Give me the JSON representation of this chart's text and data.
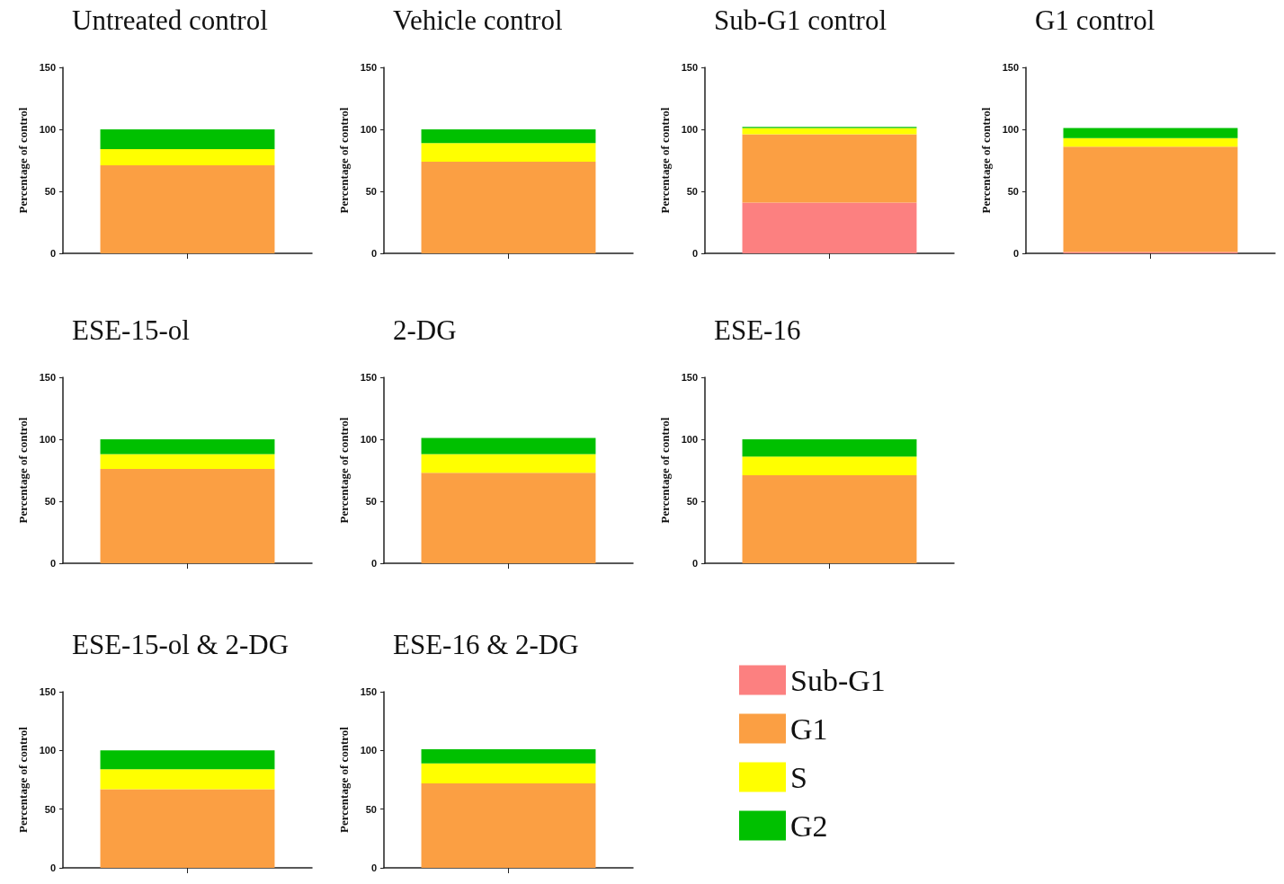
{
  "chart_data": [
    {
      "type": "bar",
      "title": "Untreated control",
      "ylabel": "Percentage of control",
      "categories": [
        null
      ],
      "stacked": true,
      "ylim": [
        0,
        150
      ],
      "yticks": [
        0,
        50,
        100,
        150
      ],
      "series": [
        {
          "color": "#fc8080",
          "values": [
            0
          ]
        },
        {
          "color": "#fb9f43",
          "values": [
            71
          ]
        },
        {
          "color": "#ffff00",
          "values": [
            13
          ]
        },
        {
          "color": "#00c000",
          "values": [
            16
          ]
        }
      ]
    },
    {
      "type": "bar",
      "title": "Vehicle control",
      "ylabel": "Percentage of control",
      "categories": [
        null
      ],
      "stacked": true,
      "ylim": [
        0,
        150
      ],
      "yticks": [
        0,
        50,
        100,
        150
      ],
      "series": [
        {
          "color": "#fc8080",
          "values": [
            0
          ]
        },
        {
          "color": "#fb9f43",
          "values": [
            74
          ]
        },
        {
          "color": "#ffff00",
          "values": [
            15
          ]
        },
        {
          "color": "#00c000",
          "values": [
            11
          ]
        }
      ]
    },
    {
      "type": "bar",
      "title": "Sub-G1 control",
      "ylabel": "Percentage of control",
      "categories": [
        null
      ],
      "stacked": true,
      "ylim": [
        0,
        150
      ],
      "yticks": [
        0,
        50,
        100,
        150
      ],
      "series": [
        {
          "color": "#fc8080",
          "values": [
            41
          ]
        },
        {
          "color": "#fb9f43",
          "values": [
            55
          ]
        },
        {
          "color": "#ffff00",
          "values": [
            5
          ]
        },
        {
          "color": "#00c000",
          "values": [
            1
          ]
        }
      ]
    },
    {
      "type": "bar",
      "title": "G1 control",
      "ylabel": "Percentage of control",
      "categories": [
        null
      ],
      "stacked": true,
      "ylim": [
        0,
        150
      ],
      "yticks": [
        0,
        50,
        100,
        150
      ],
      "series": [
        {
          "color": "#fc8080",
          "values": [
            1
          ]
        },
        {
          "color": "#fb9f43",
          "values": [
            85
          ]
        },
        {
          "color": "#ffff00",
          "values": [
            7
          ]
        },
        {
          "color": "#00c000",
          "values": [
            8
          ]
        }
      ]
    },
    {
      "type": "bar",
      "title": "ESE-15-ol",
      "ylabel": "Percentage of control",
      "categories": [
        null
      ],
      "stacked": true,
      "ylim": [
        0,
        150
      ],
      "yticks": [
        0,
        50,
        100,
        150
      ],
      "series": [
        {
          "color": "#fc8080",
          "values": [
            0
          ]
        },
        {
          "color": "#fb9f43",
          "values": [
            76
          ]
        },
        {
          "color": "#ffff00",
          "values": [
            12
          ]
        },
        {
          "color": "#00c000",
          "values": [
            12
          ]
        }
      ]
    },
    {
      "type": "bar",
      "title": "2-DG",
      "ylabel": "Percentage of control",
      "categories": [
        null
      ],
      "stacked": true,
      "ylim": [
        0,
        150
      ],
      "yticks": [
        0,
        50,
        100,
        150
      ],
      "series": [
        {
          "color": "#fc8080",
          "values": [
            0
          ]
        },
        {
          "color": "#fb9f43",
          "values": [
            73
          ]
        },
        {
          "color": "#ffff00",
          "values": [
            15
          ]
        },
        {
          "color": "#00c000",
          "values": [
            13
          ]
        }
      ]
    },
    {
      "type": "bar",
      "title": "ESE-16",
      "ylabel": "Percentage of control",
      "categories": [
        null
      ],
      "stacked": true,
      "ylim": [
        0,
        150
      ],
      "yticks": [
        0,
        50,
        100,
        150
      ],
      "series": [
        {
          "color": "#fc8080",
          "values": [
            0
          ]
        },
        {
          "color": "#fb9f43",
          "values": [
            71
          ]
        },
        {
          "color": "#ffff00",
          "values": [
            15
          ]
        },
        {
          "color": "#00c000",
          "values": [
            14
          ]
        }
      ]
    },
    {
      "type": "bar",
      "title": "ESE-15-ol & 2-DG",
      "ylabel": "Percentage of control",
      "categories": [
        null
      ],
      "stacked": true,
      "ylim": [
        0,
        150
      ],
      "yticks": [
        0,
        50,
        100,
        150
      ],
      "series": [
        {
          "color": "#fc8080",
          "values": [
            0
          ]
        },
        {
          "color": "#fb9f43",
          "values": [
            67
          ]
        },
        {
          "color": "#ffff00",
          "values": [
            17
          ]
        },
        {
          "color": "#00c000",
          "values": [
            16
          ]
        }
      ]
    },
    {
      "type": "bar",
      "title": "ESE-16 & 2-DG",
      "ylabel": "Percentage of control",
      "categories": [
        null
      ],
      "stacked": true,
      "ylim": [
        0,
        150
      ],
      "yticks": [
        0,
        50,
        100,
        150
      ],
      "legend": "right",
      "series": [
        {
          "name": "Sub-G1",
          "color": "#fc8080",
          "values": [
            0
          ]
        },
        {
          "name": "G1",
          "color": "#fb9f43",
          "values": [
            72
          ]
        },
        {
          "name": "S",
          "color": "#ffff00",
          "values": [
            17
          ]
        },
        {
          "name": "G2",
          "color": "#00c000",
          "values": [
            12
          ]
        }
      ]
    }
  ]
}
